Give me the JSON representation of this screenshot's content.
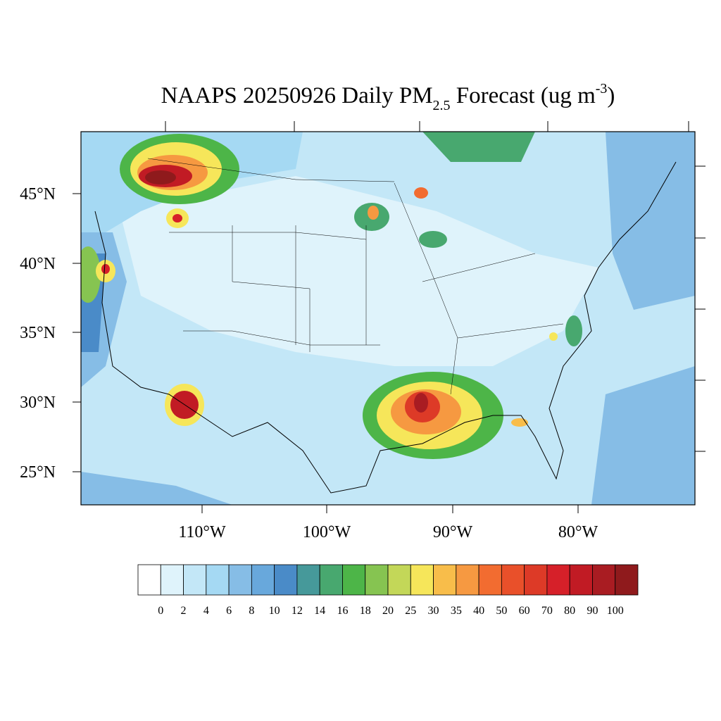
{
  "title_parts": [
    "NAAPS 20250926 Daily PM",
    "2.5",
    " Forecast (ug m",
    "-3",
    ")"
  ],
  "lat_labels": [
    "45°N",
    "40°N",
    "35°N",
    "30°N",
    "25°N"
  ],
  "lon_labels": [
    "110°W",
    "100°W",
    "90°W",
    "80°W"
  ],
  "colorbar": {
    "labels": [
      "0",
      "2",
      "4",
      "6",
      "8",
      "10",
      "12",
      "14",
      "16",
      "18",
      "20",
      "25",
      "30",
      "35",
      "40",
      "50",
      "60",
      "70",
      "80",
      "90",
      "100"
    ],
    "colors": [
      "#ffffff",
      "#dff3fb",
      "#c3e7f7",
      "#a5d9f3",
      "#86bde6",
      "#68a8dc",
      "#4a8bc8",
      "#46999a",
      "#48a86f",
      "#4db548",
      "#86c451",
      "#c3d758",
      "#f6e65a",
      "#f8bd4a",
      "#f69941",
      "#f26c30",
      "#e9502a",
      "#dd3a27",
      "#d62029",
      "#c11b24",
      "#a91c22",
      "#8f1a1c"
    ]
  }
}
